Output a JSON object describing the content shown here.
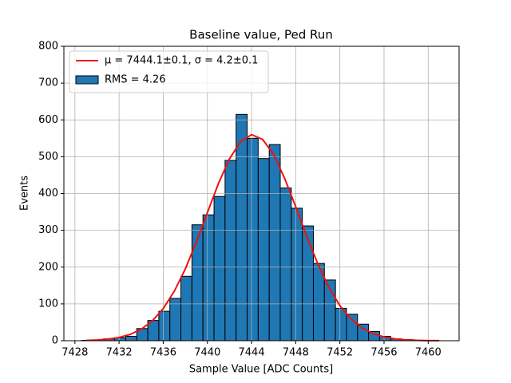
{
  "chart_data": {
    "type": "histogram",
    "title": "Baseline value, Ped Run",
    "xlabel": "Sample Value [ADC Counts]",
    "ylabel": "Events",
    "xlim": [
      7427,
      7462.8
    ],
    "ylim": [
      0,
      800
    ],
    "xticks": [
      7428,
      7432,
      7436,
      7440,
      7444,
      7448,
      7452,
      7456,
      7460
    ],
    "yticks": [
      0,
      100,
      200,
      300,
      400,
      500,
      600,
      700,
      800
    ],
    "grid": true,
    "legend": "upper left",
    "series": [
      {
        "name": "μ = 7444.1±0.1, σ = 4.2±0.1",
        "type": "line",
        "color": "#ee1111",
        "x": [
          7429,
          7430,
          7431,
          7432,
          7433,
          7434,
          7435,
          7436,
          7437,
          7438,
          7439,
          7440,
          7441,
          7442,
          7443,
          7444,
          7445,
          7446,
          7447,
          7448,
          7449,
          7450,
          7451,
          7452,
          7453,
          7454,
          7455,
          7456,
          7457,
          7458,
          7459,
          7460,
          7461
        ],
        "values": [
          0.9,
          2.0,
          4.3,
          8.8,
          17.1,
          31.1,
          53.5,
          87.3,
          134.4,
          195,
          268,
          348,
          427,
          494,
          541,
          560,
          547,
          506,
          441,
          364,
          283,
          209,
          145,
          95.3,
          59.3,
          34.7,
          19.3,
          10.1,
          5.0,
          2.3,
          1.0,
          0.4,
          0.2
        ]
      },
      {
        "name": "RMS = 4.26",
        "type": "histogram",
        "color": "#1f77b4",
        "edgecolor": "#000000",
        "bins": [
          7428.6,
          7429.6,
          7430.6,
          7431.6,
          7432.6,
          7433.6,
          7434.6,
          7435.6,
          7436.6,
          7437.6,
          7438.6,
          7439.6,
          7440.6,
          7441.6,
          7442.6,
          7443.6,
          7444.6,
          7445.6,
          7446.6,
          7447.6,
          7448.6,
          7449.6,
          7450.6,
          7451.6,
          7452.6,
          7453.6,
          7454.6,
          7455.6,
          7456.6,
          7457.6,
          7458.6,
          7459.6,
          7460.6,
          7461.6
        ],
        "values": [
          1,
          2,
          5,
          8,
          12,
          33,
          55,
          80,
          115,
          175,
          315,
          342,
          392,
          490,
          615,
          550,
          495,
          533,
          415,
          360,
          312,
          210,
          165,
          88,
          72,
          45,
          25,
          12,
          5,
          3,
          1,
          1,
          0
        ]
      }
    ]
  }
}
